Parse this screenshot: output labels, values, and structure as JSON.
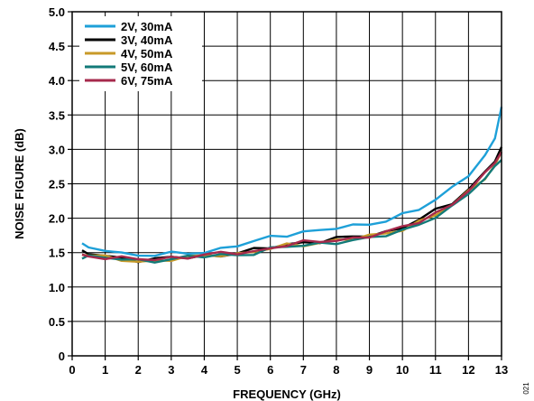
{
  "chart_data": {
    "type": "line",
    "title": "",
    "xlabel": "FREQUENCY (GHz)",
    "ylabel": "NOISE FIGURE (dB)",
    "xlim": [
      0,
      13
    ],
    "ylim": [
      0,
      5
    ],
    "xticks": [
      0,
      1,
      2,
      3,
      4,
      5,
      6,
      7,
      8,
      9,
      10,
      11,
      12,
      13
    ],
    "xtick_labels": [
      "0",
      "1",
      "2",
      "3",
      "4",
      "5",
      "6",
      "7",
      "8",
      "9",
      "10",
      "11",
      "12",
      "13"
    ],
    "yticks": [
      0,
      0.5,
      1.0,
      1.5,
      2.0,
      2.5,
      3.0,
      3.5,
      4.0,
      4.5,
      5.0
    ],
    "ytick_labels": [
      "0",
      "0.5",
      "1.0",
      "1.5",
      "2.0",
      "2.5",
      "3.0",
      "3.5",
      "4.0",
      "4.5",
      "5.0"
    ],
    "grid": true,
    "legend_position": "top-left",
    "figure_code": "021",
    "x": [
      0.3,
      0.5,
      1.0,
      1.5,
      2.0,
      2.5,
      3.0,
      3.5,
      4.0,
      4.5,
      5.0,
      5.5,
      6.0,
      6.5,
      7.0,
      7.5,
      8.0,
      8.5,
      9.0,
      9.5,
      10.0,
      10.5,
      11.0,
      11.5,
      12.0,
      12.5,
      12.8,
      13.0
    ],
    "series": [
      {
        "name": "2V, 30mA",
        "color": "#1ea0d8",
        "values": [
          1.62,
          1.55,
          1.56,
          1.5,
          1.45,
          1.46,
          1.48,
          1.5,
          1.52,
          1.55,
          1.6,
          1.65,
          1.73,
          1.77,
          1.8,
          1.82,
          1.85,
          1.88,
          1.93,
          1.97,
          2.05,
          2.13,
          2.25,
          2.45,
          2.65,
          2.9,
          3.15,
          3.62
        ]
      },
      {
        "name": "3V, 40mA",
        "color": "#000000",
        "values": [
          1.5,
          1.48,
          1.45,
          1.42,
          1.4,
          1.4,
          1.42,
          1.43,
          1.45,
          1.47,
          1.5,
          1.53,
          1.57,
          1.62,
          1.65,
          1.67,
          1.7,
          1.72,
          1.75,
          1.8,
          1.88,
          1.98,
          2.1,
          2.22,
          2.42,
          2.68,
          2.85,
          3.0
        ]
      },
      {
        "name": "4V, 50mA",
        "color": "#c89a28",
        "values": [
          1.48,
          1.46,
          1.42,
          1.4,
          1.38,
          1.38,
          1.4,
          1.42,
          1.45,
          1.48,
          1.48,
          1.52,
          1.55,
          1.6,
          1.62,
          1.65,
          1.68,
          1.7,
          1.73,
          1.78,
          1.85,
          1.95,
          2.05,
          2.18,
          2.38,
          2.6,
          2.78,
          2.95
        ]
      },
      {
        "name": "5V, 60mA",
        "color": "#127a78",
        "values": [
          1.45,
          1.44,
          1.42,
          1.4,
          1.38,
          1.39,
          1.41,
          1.43,
          1.44,
          1.46,
          1.47,
          1.5,
          1.55,
          1.58,
          1.6,
          1.63,
          1.66,
          1.68,
          1.7,
          1.75,
          1.82,
          1.92,
          2.03,
          2.15,
          2.35,
          2.58,
          2.75,
          2.88
        ]
      },
      {
        "name": "6V, 75mA",
        "color": "#a62a4c",
        "values": [
          1.47,
          1.45,
          1.43,
          1.41,
          1.4,
          1.41,
          1.43,
          1.44,
          1.46,
          1.48,
          1.5,
          1.52,
          1.57,
          1.61,
          1.64,
          1.66,
          1.69,
          1.71,
          1.74,
          1.79,
          1.86,
          1.96,
          2.08,
          2.2,
          2.4,
          2.63,
          2.82,
          2.98
        ]
      }
    ]
  }
}
